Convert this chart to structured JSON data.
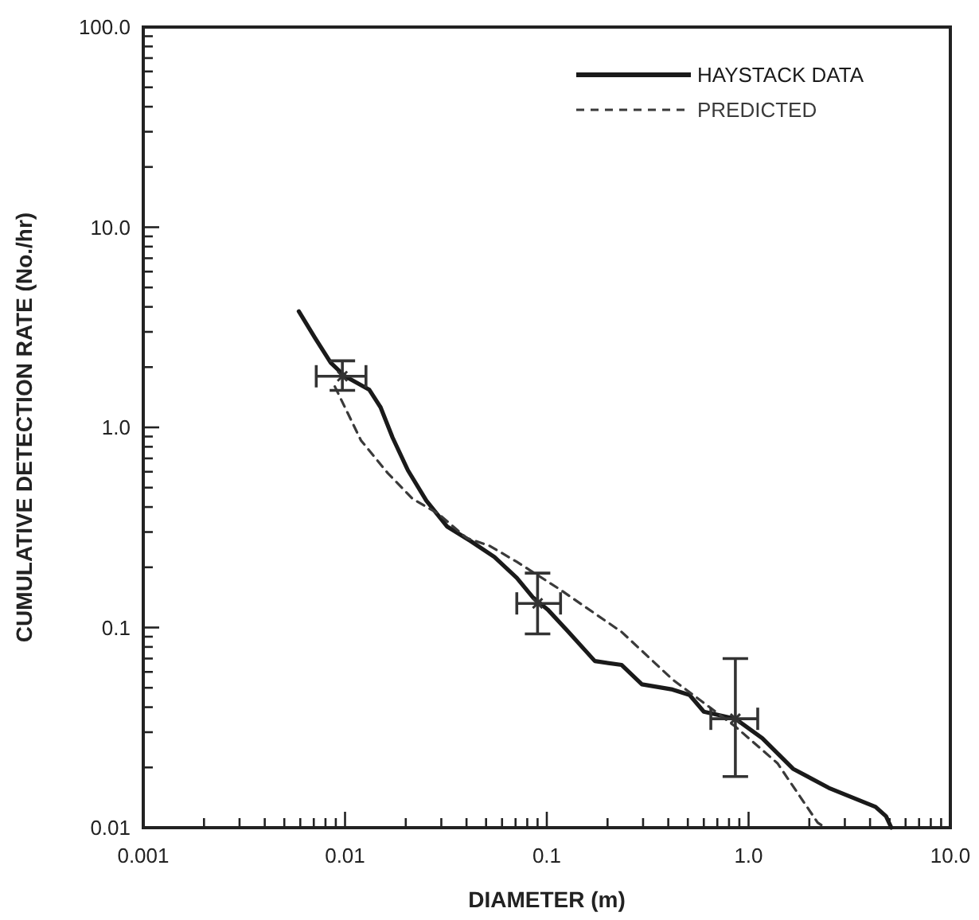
{
  "chart_data": {
    "type": "line",
    "xlabel": "DIAMETER (m)",
    "ylabel": "CUMULATIVE DETECTION RATE (No./hr)",
    "log": "xy",
    "xlim": [
      0.001,
      10
    ],
    "ylim": [
      0.01,
      100
    ],
    "xticks": [
      {
        "value": 0.001,
        "label": "0.001"
      },
      {
        "value": 0.002,
        "label": null
      },
      {
        "value": 0.003,
        "label": null
      },
      {
        "value": 0.004,
        "label": null
      },
      {
        "value": 0.005,
        "label": null
      },
      {
        "value": 0.006,
        "label": null
      },
      {
        "value": 0.007,
        "label": null
      },
      {
        "value": 0.008,
        "label": null
      },
      {
        "value": 0.009,
        "label": null
      },
      {
        "value": 0.01,
        "label": "0.01"
      },
      {
        "value": 0.02,
        "label": null
      },
      {
        "value": 0.03,
        "label": null
      },
      {
        "value": 0.04,
        "label": null
      },
      {
        "value": 0.05,
        "label": null
      },
      {
        "value": 0.06,
        "label": null
      },
      {
        "value": 0.07,
        "label": null
      },
      {
        "value": 0.08,
        "label": null
      },
      {
        "value": 0.09,
        "label": null
      },
      {
        "value": 0.1,
        "label": "0.1"
      },
      {
        "value": 0.2,
        "label": null
      },
      {
        "value": 0.3,
        "label": null
      },
      {
        "value": 0.4,
        "label": null
      },
      {
        "value": 0.5,
        "label": null
      },
      {
        "value": 0.6,
        "label": null
      },
      {
        "value": 0.7,
        "label": null
      },
      {
        "value": 0.8,
        "label": null
      },
      {
        "value": 0.9,
        "label": null
      },
      {
        "value": 1,
        "label": "1.0"
      },
      {
        "value": 2,
        "label": null
      },
      {
        "value": 3,
        "label": null
      },
      {
        "value": 4,
        "label": null
      },
      {
        "value": 5,
        "label": null
      },
      {
        "value": 6,
        "label": null
      },
      {
        "value": 7,
        "label": null
      },
      {
        "value": 8,
        "label": null
      },
      {
        "value": 9,
        "label": null
      },
      {
        "value": 10,
        "label": "10.0"
      }
    ],
    "yticks": [
      {
        "value": 0.01,
        "label": "0.01"
      },
      {
        "value": 0.02,
        "label": null
      },
      {
        "value": 0.03,
        "label": null
      },
      {
        "value": 0.04,
        "label": null
      },
      {
        "value": 0.05,
        "label": null
      },
      {
        "value": 0.06,
        "label": null
      },
      {
        "value": 0.07,
        "label": null
      },
      {
        "value": 0.08,
        "label": null
      },
      {
        "value": 0.09,
        "label": null
      },
      {
        "value": 0.1,
        "label": "0.1"
      },
      {
        "value": 0.2,
        "label": null
      },
      {
        "value": 0.3,
        "label": null
      },
      {
        "value": 0.4,
        "label": null
      },
      {
        "value": 0.5,
        "label": null
      },
      {
        "value": 0.6,
        "label": null
      },
      {
        "value": 0.7,
        "label": null
      },
      {
        "value": 0.8,
        "label": null
      },
      {
        "value": 0.9,
        "label": null
      },
      {
        "value": 1,
        "label": "1.0"
      },
      {
        "value": 2,
        "label": null
      },
      {
        "value": 3,
        "label": null
      },
      {
        "value": 4,
        "label": null
      },
      {
        "value": 5,
        "label": null
      },
      {
        "value": 6,
        "label": null
      },
      {
        "value": 7,
        "label": null
      },
      {
        "value": 8,
        "label": null
      },
      {
        "value": 9,
        "label": null
      },
      {
        "value": 10,
        "label": "10.0"
      },
      {
        "value": 20,
        "label": null
      },
      {
        "value": 30,
        "label": null
      },
      {
        "value": 40,
        "label": null
      },
      {
        "value": 50,
        "label": null
      },
      {
        "value": 60,
        "label": null
      },
      {
        "value": 70,
        "label": null
      },
      {
        "value": 80,
        "label": null
      },
      {
        "value": 90,
        "label": null
      },
      {
        "value": 100,
        "label": "100.0"
      }
    ],
    "legend": "top right",
    "grid": false,
    "series": [
      {
        "name": "HAYSTACK DATA",
        "color": "#1a1a1a",
        "line_style": "solid",
        "x": [
          0.0059,
          0.0071,
          0.0085,
          0.01,
          0.0132,
          0.015,
          0.0172,
          0.0205,
          0.0253,
          0.032,
          0.042,
          0.055,
          0.071,
          0.085,
          0.101,
          0.128,
          0.173,
          0.235,
          0.296,
          0.42,
          0.51,
          0.6,
          0.86,
          1.17,
          1.66,
          2.5,
          4.26,
          4.8,
          5.1
        ],
        "values": [
          3.8,
          2.8,
          2.1,
          1.8,
          1.54,
          1.26,
          0.89,
          0.61,
          0.43,
          0.32,
          0.27,
          0.225,
          0.177,
          0.142,
          0.123,
          0.095,
          0.068,
          0.065,
          0.052,
          0.049,
          0.046,
          0.038,
          0.035,
          0.028,
          0.0197,
          0.0158,
          0.0127,
          0.0114,
          0.01
        ]
      },
      {
        "name": "PREDICTED",
        "color": "#3a3a3a",
        "line_style": "dashed",
        "x": [
          0.0089,
          0.012,
          0.0163,
          0.0216,
          0.029,
          0.04,
          0.052,
          0.071,
          0.115,
          0.235,
          0.42,
          0.86,
          1.39,
          2.2,
          2.4
        ],
        "values": [
          1.6,
          0.86,
          0.59,
          0.44,
          0.37,
          0.28,
          0.256,
          0.213,
          0.156,
          0.095,
          0.055,
          0.032,
          0.021,
          0.0106,
          0.01
        ]
      },
      {
        "type": "scatter",
        "color": "#333333",
        "marker": "cross",
        "x": [
          0.0097,
          0.09,
          0.86
        ],
        "values": [
          1.8,
          0.132,
          0.035
        ],
        "errors": [
          [
            1.53,
            2.15
          ],
          [
            0.093,
            0.187
          ],
          [
            0.018,
            0.07
          ]
        ],
        "xerrors": [
          [
            0.0072,
            0.0127
          ],
          [
            0.071,
            0.117
          ],
          [
            0.65,
            1.11
          ]
        ]
      }
    ]
  }
}
